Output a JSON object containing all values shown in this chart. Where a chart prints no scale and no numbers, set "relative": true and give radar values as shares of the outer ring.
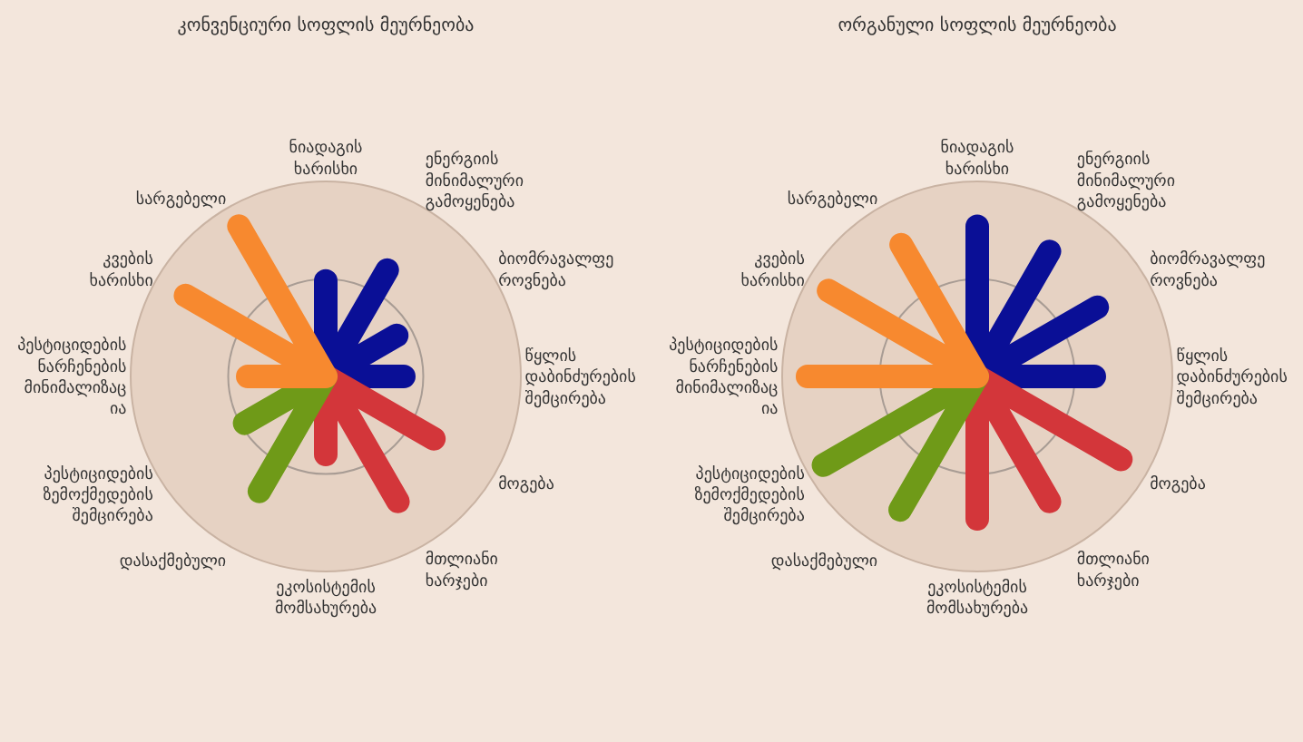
{
  "chart_data": [
    {
      "type": "radar",
      "relative": true,
      "grid": true,
      "title": "კონვენციური სოფლის მეურნეობა",
      "categories": [
        "ნიადაგის ხარისხი",
        "ენერგიის მინიმალური გამოყენება",
        "ბიომრავალფეროვნება",
        "წყლის დაბინძურების შემცირება",
        "მოგება",
        "მთლიანი ხარჯები",
        "ეკოსისტემის მომსახურება",
        "დასაქმებული",
        "პესტიციდების ზემოქმედების შემცირება",
        "პესტიციდების ნარჩენების მინიმალიზაცია",
        "კვების ხარისხი",
        "სარგებელი"
      ],
      "series": [
        {
          "color": "#0a0f96",
          "values": [
            0.49,
            0.63,
            0.42,
            0.4,
            null,
            null,
            null,
            null,
            null,
            null,
            null,
            null
          ]
        },
        {
          "color": "#d3363a",
          "values": [
            null,
            null,
            null,
            null,
            0.64,
            0.74,
            0.4,
            null,
            null,
            null,
            null,
            null
          ]
        },
        {
          "color": "#6f9a18",
          "values": [
            null,
            null,
            null,
            null,
            null,
            null,
            null,
            0.68,
            0.48,
            null,
            null,
            null
          ]
        },
        {
          "color": "#f7892f",
          "values": [
            null,
            null,
            null,
            null,
            null,
            null,
            null,
            null,
            null,
            0.4,
            0.83,
            0.89
          ]
        }
      ]
    },
    {
      "type": "radar",
      "relative": true,
      "grid": true,
      "title": "ორგანული სოფლის მეურნეობა",
      "categories": [
        "ნიადაგის ხარისხი",
        "ენერგიის მინიმალური გამოყენება",
        "ბიომრავალფეროვნება",
        "წყლის დაბინძურების შემცირება",
        "მოგება",
        "მთლიანი ხარჯები",
        "ეკოსისტემის მომსახურება",
        "დასაქმებული",
        "პესტიციდების ზემოქმედების შემცირება",
        "პესტიციდების ნარჩენების მინიმალიზაცია",
        "კვების ხარისხი",
        "სარგებელი"
      ],
      "series": [
        {
          "color": "#0a0f96",
          "values": [
            0.77,
            0.74,
            0.71,
            0.6,
            null,
            null,
            null,
            null,
            null,
            null,
            null,
            null
          ]
        },
        {
          "color": "#d3363a",
          "values": [
            null,
            null,
            null,
            null,
            0.85,
            0.74,
            0.73,
            null,
            null,
            null,
            null,
            null
          ]
        },
        {
          "color": "#6f9a18",
          "values": [
            null,
            null,
            null,
            null,
            null,
            null,
            null,
            0.79,
            0.91,
            null,
            null,
            null
          ]
        },
        {
          "color": "#f7892f",
          "values": [
            null,
            null,
            null,
            null,
            null,
            null,
            null,
            null,
            null,
            0.87,
            0.88,
            0.78
          ]
        }
      ]
    }
  ]
}
